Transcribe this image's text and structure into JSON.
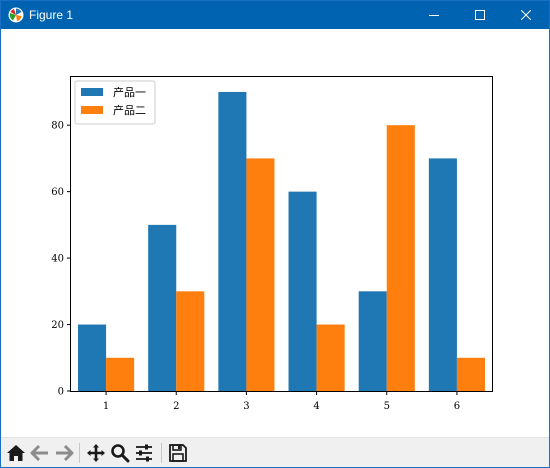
{
  "window": {
    "title": "Figure 1",
    "icon": "matplotlib-icon",
    "controls": [
      "minimize-icon",
      "maximize-icon",
      "close-icon"
    ]
  },
  "toolbar": {
    "buttons": [
      "home-icon",
      "back-arrow-icon",
      "forward-arrow-icon",
      "pan-icon",
      "zoom-icon",
      "configure-subplots-icon",
      "save-icon"
    ]
  },
  "chart_data": {
    "type": "bar",
    "categories": [
      "1",
      "2",
      "3",
      "4",
      "5",
      "6"
    ],
    "series": [
      {
        "name": "产品一",
        "values": [
          20,
          50,
          90,
          60,
          30,
          70
        ],
        "color": "#1f77b4"
      },
      {
        "name": "产品二",
        "values": [
          10,
          30,
          70,
          20,
          80,
          10
        ],
        "color": "#ff7f0e"
      }
    ],
    "title": "",
    "xlabel": "",
    "ylabel": "",
    "ylim": [
      0,
      94.5
    ],
    "yticks": [
      0,
      20,
      40,
      60,
      80
    ],
    "grid": false,
    "legend": "top-left"
  }
}
